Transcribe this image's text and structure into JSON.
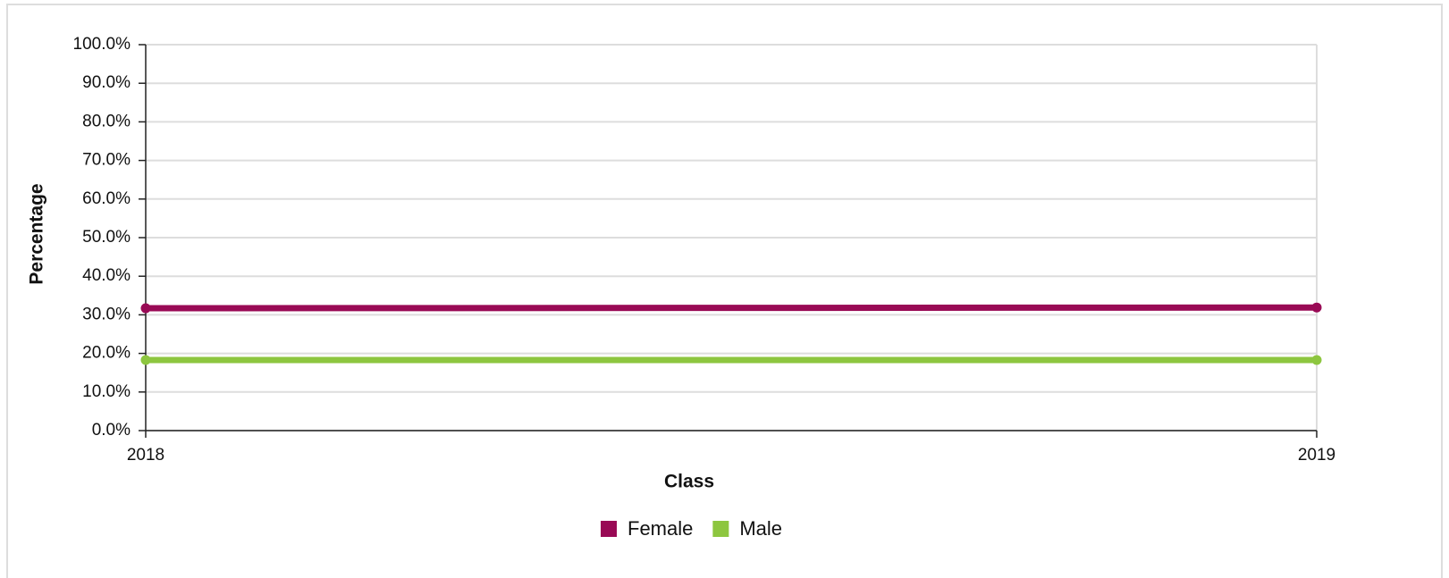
{
  "chart_data": {
    "type": "line",
    "x_label": "Class",
    "y_label": "Percentage",
    "categories": [
      "2018",
      "2019"
    ],
    "series": [
      {
        "name": "Female",
        "color": "#990a55",
        "values": [
          31.7,
          31.9
        ]
      },
      {
        "name": "Male",
        "color": "#8dc63f",
        "values": [
          18.3,
          18.3
        ]
      }
    ],
    "ylim": [
      0,
      100
    ],
    "yticks": [
      {
        "value": 0,
        "label": "0.0%"
      },
      {
        "value": 10,
        "label": "10.0%"
      },
      {
        "value": 20,
        "label": "20.0%"
      },
      {
        "value": 30,
        "label": "30.0%"
      },
      {
        "value": 40,
        "label": "40.0%"
      },
      {
        "value": 50,
        "label": "50.0%"
      },
      {
        "value": 60,
        "label": "60.0%"
      },
      {
        "value": 70,
        "label": "70.0%"
      },
      {
        "value": 80,
        "label": "80.0%"
      },
      {
        "value": 90,
        "label": "90.0%"
      },
      {
        "value": 100,
        "label": "100.0%"
      }
    ],
    "grid": true,
    "legend": "bottom"
  }
}
